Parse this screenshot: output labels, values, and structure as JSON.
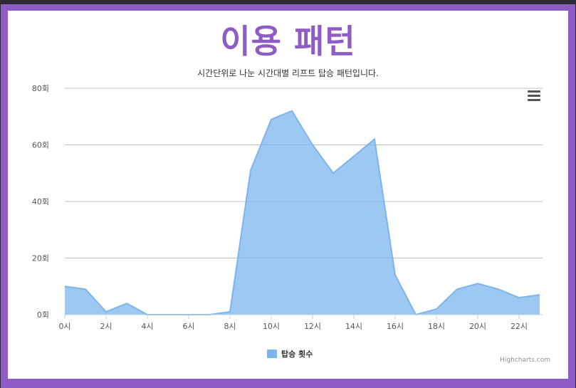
{
  "chart_data": {
    "type": "area",
    "title": "이용 패턴",
    "subtitle": "시간단위로 나눈 시간대별 리프트 탑승 패턴입니다.",
    "x": [
      "0시",
      "1시",
      "2시",
      "3시",
      "4시",
      "5시",
      "6시",
      "7시",
      "8시",
      "9시",
      "10시",
      "11시",
      "12시",
      "13시",
      "14시",
      "15시",
      "16시",
      "17시",
      "18시",
      "19시",
      "20시",
      "21시",
      "22시",
      "23시"
    ],
    "x_tick_labels": [
      "0시",
      "2시",
      "4시",
      "6시",
      "8시",
      "10시",
      "12시",
      "14시",
      "16시",
      "18시",
      "20시",
      "22시"
    ],
    "y_tick_labels": [
      "0회",
      "20회",
      "40회",
      "60회",
      "80회"
    ],
    "ylim": [
      0,
      80
    ],
    "series": [
      {
        "name": "탑승 횟수",
        "values": [
          10,
          9,
          1,
          4,
          0,
          0,
          0,
          0,
          1,
          51,
          69,
          72,
          60,
          50,
          56,
          62,
          14,
          0,
          2,
          9,
          11,
          9,
          6,
          7
        ]
      }
    ],
    "grid": true,
    "legend": "bottom-center",
    "colors": {
      "fill": "#7cb5ec",
      "line": "#7cb5ec",
      "title": "#8e5cc4",
      "frame": "#8e5cc4"
    }
  },
  "credits": "Highcharts.com",
  "menu_icon": "hamburger-menu-icon"
}
